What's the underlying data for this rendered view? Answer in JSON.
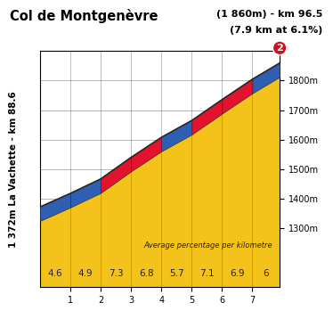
{
  "chart_data": {
    "type": "area",
    "title": "Col de Montgenèvre",
    "subtitle": "(1 860m) - km 96.5",
    "subtitle_2": "(7.9 km at 6.1%)",
    "start_label": "1 372m La Vachette - km 88.6",
    "note": "Average percentage per kilometre",
    "category_label": "2",
    "x": [
      0,
      1,
      2,
      3,
      4,
      5,
      6,
      7,
      7.9
    ],
    "values": [
      1372,
      1418,
      1467,
      1540,
      1608,
      1665,
      1736,
      1805,
      1860
    ],
    "gradients": [
      4.6,
      4.9,
      7.3,
      6.8,
      5.7,
      7.1,
      6.9,
      6
    ],
    "colors": [
      "#2f5fb3",
      "#2f5fb3",
      "#e3122d",
      "#e3122d",
      "#2f5fb3",
      "#e3122d",
      "#e3122d",
      "#2f5fb3"
    ],
    "xlim": [
      0,
      7.9
    ],
    "xticks": [
      1,
      2,
      3,
      4,
      5,
      6,
      7
    ],
    "ylim": [
      1100,
      1900
    ],
    "yticks": [
      {
        "value": 1300,
        "label": "1300m"
      },
      {
        "value": 1400,
        "label": "1400m"
      },
      {
        "value": 1500,
        "label": "1500m"
      },
      {
        "value": 1600,
        "label": "1600m"
      },
      {
        "value": 1700,
        "label": "1700m"
      },
      {
        "value": 1800,
        "label": "1800m"
      }
    ],
    "grid": true
  }
}
